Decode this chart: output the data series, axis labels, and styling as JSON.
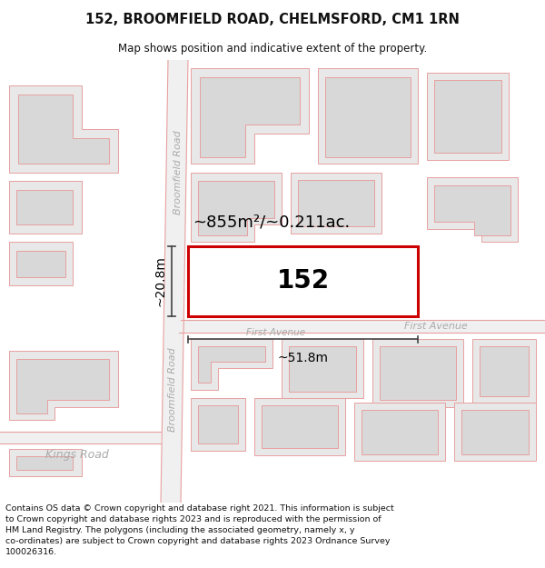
{
  "title": "152, BROOMFIELD ROAD, CHELMSFORD, CM1 1RN",
  "subtitle": "Map shows position and indicative extent of the property.",
  "footer": "Contains OS data © Crown copyright and database right 2021. This information is subject\nto Crown copyright and database rights 2023 and is reproduced with the permission of\nHM Land Registry. The polygons (including the associated geometry, namely x, y\nco-ordinates) are subject to Crown copyright and database rights 2023 Ordnance Survey\n100026316.",
  "map_bg": "#ffffff",
  "road_fill": "#f5f5f5",
  "road_line": "#e8a0a0",
  "road_line_lw": 0.8,
  "building_fill": "#e8e8e8",
  "building_edge": "#e8a0a0",
  "road_label_color": "#aaaaaa",
  "dim_color": "#444444",
  "highlight_color": "#cc0000",
  "property_label": "152",
  "area_label": "~855m²/~0.211ac.",
  "width_label": "~51.8m",
  "height_label": "~20.8m",
  "broomfield_road_label": "Broomfield Road",
  "kings_road_label": "Kings Road",
  "first_avenue_label": "First Avenue"
}
